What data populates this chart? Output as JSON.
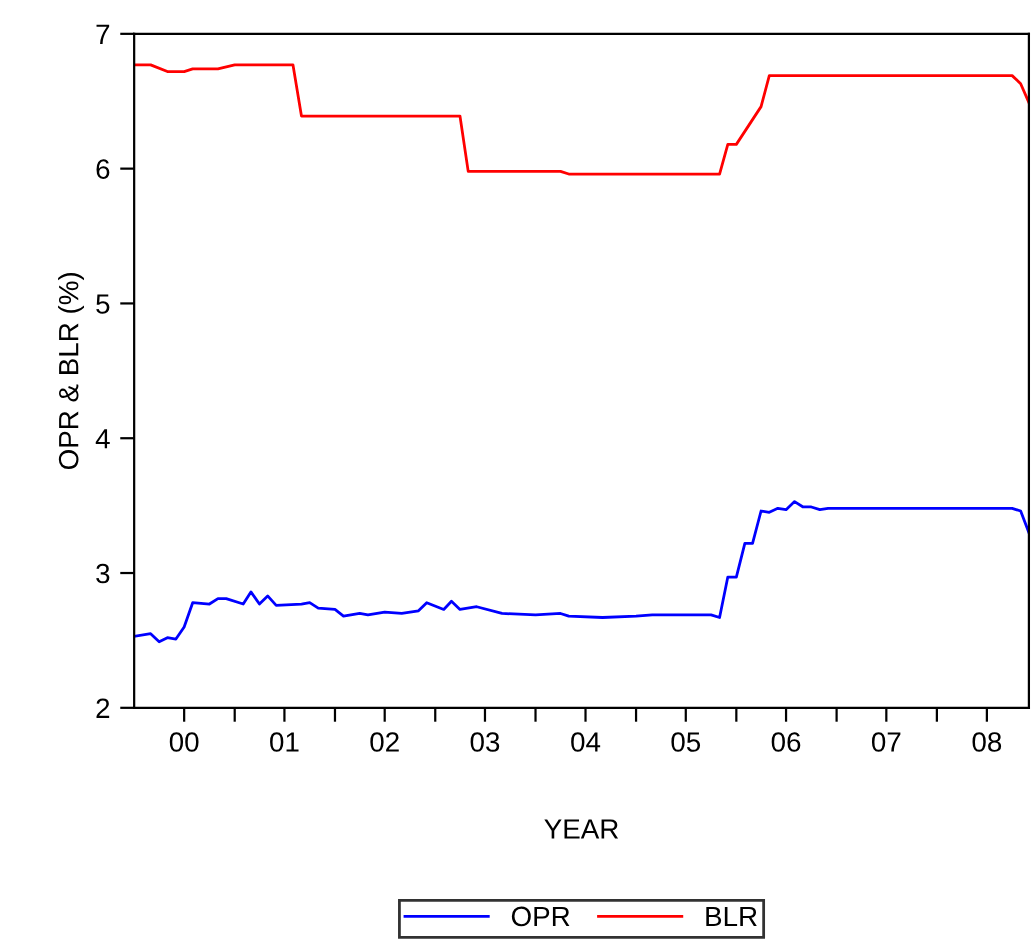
{
  "chart_data": {
    "type": "line",
    "xlabel": "YEAR",
    "ylabel": "OPR & BLR (%)",
    "xlim": [
      "2000-01",
      "2008-12"
    ],
    "xticks": [
      {
        "value": "2000-07",
        "label": "00"
      },
      {
        "value": "2001-01",
        "label": null
      },
      {
        "value": "2001-07",
        "label": "01"
      },
      {
        "value": "2002-01",
        "label": null
      },
      {
        "value": "2002-07",
        "label": "02"
      },
      {
        "value": "2003-01",
        "label": null
      },
      {
        "value": "2003-07",
        "label": "03"
      },
      {
        "value": "2004-01",
        "label": null
      },
      {
        "value": "2004-07",
        "label": "04"
      },
      {
        "value": "2005-01",
        "label": null
      },
      {
        "value": "2005-07",
        "label": "05"
      },
      {
        "value": "2006-01",
        "label": null
      },
      {
        "value": "2006-07",
        "label": "06"
      },
      {
        "value": "2007-01",
        "label": null
      },
      {
        "value": "2007-07",
        "label": "07"
      },
      {
        "value": "2008-01",
        "label": null
      },
      {
        "value": "2008-07",
        "label": "08"
      }
    ],
    "ylim": [
      2,
      7
    ],
    "yticks": [
      2,
      3,
      4,
      5,
      6,
      7
    ],
    "grid": false,
    "legend": "bottom",
    "marker": "none",
    "line_style": "solid",
    "series": [
      {
        "name": "OPR",
        "color": "#0000ff",
        "x": [
          "2000-01",
          "2000-03",
          "2000-04",
          "2000-05",
          "2000-06",
          "2000-07",
          "2000-08",
          "2000-10",
          "2000-11",
          "2000-12",
          "2001-02",
          "2001-03",
          "2001-04",
          "2001-05",
          "2001-06",
          "2001-09",
          "2001-10",
          "2001-11",
          "2002-01",
          "2002-02",
          "2002-04",
          "2002-05",
          "2002-07",
          "2002-09",
          "2002-11",
          "2002-12",
          "2003-02",
          "2003-03",
          "2003-04",
          "2003-06",
          "2003-09",
          "2004-01",
          "2004-04",
          "2004-05",
          "2004-09",
          "2005-01",
          "2005-03",
          "2005-10",
          "2005-11",
          "2005-12",
          "2006-01",
          "2006-02",
          "2006-03",
          "2006-04",
          "2006-05",
          "2006-06",
          "2006-07",
          "2006-08",
          "2006-09",
          "2006-10",
          "2006-11",
          "2006-12",
          "2007-11",
          "2008-10",
          "2008-11",
          "2008-12"
        ],
        "values": [
          2.53,
          2.55,
          2.49,
          2.52,
          2.51,
          2.6,
          2.78,
          2.77,
          2.81,
          2.81,
          2.77,
          2.86,
          2.77,
          2.83,
          2.76,
          2.77,
          2.78,
          2.74,
          2.73,
          2.68,
          2.7,
          2.69,
          2.71,
          2.7,
          2.72,
          2.78,
          2.73,
          2.79,
          2.73,
          2.75,
          2.7,
          2.69,
          2.7,
          2.68,
          2.67,
          2.68,
          2.69,
          2.69,
          2.67,
          2.97,
          2.97,
          3.22,
          3.22,
          3.46,
          3.45,
          3.48,
          3.47,
          3.53,
          3.49,
          3.49,
          3.47,
          3.48,
          3.48,
          3.48,
          3.46,
          3.3
        ]
      },
      {
        "name": "BLR",
        "color": "#ff0000",
        "x": [
          "2000-01",
          "2000-03",
          "2000-05",
          "2000-07",
          "2000-08",
          "2000-11",
          "2001-01",
          "2001-08",
          "2001-09",
          "2003-04",
          "2003-05",
          "2004-04",
          "2004-05",
          "2005-11",
          "2005-12",
          "2006-01",
          "2006-04",
          "2006-05",
          "2008-10",
          "2008-11",
          "2008-12"
        ],
        "values": [
          6.77,
          6.77,
          6.72,
          6.72,
          6.74,
          6.74,
          6.77,
          6.77,
          6.39,
          6.39,
          5.98,
          5.98,
          5.96,
          5.96,
          6.18,
          6.18,
          6.46,
          6.69,
          6.69,
          6.63,
          6.49
        ]
      }
    ]
  }
}
